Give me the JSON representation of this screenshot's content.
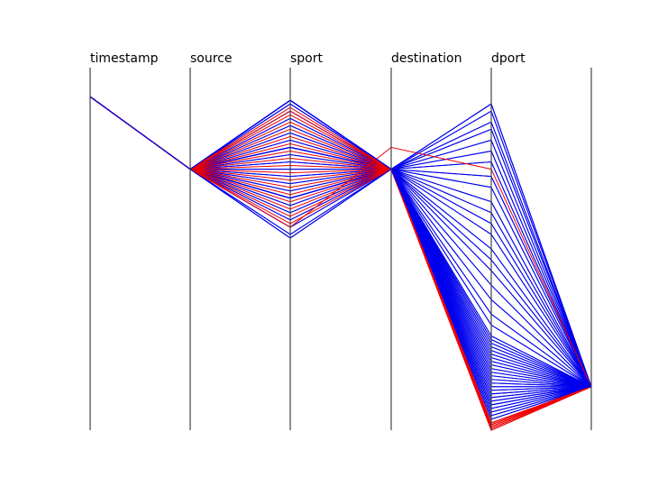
{
  "chart_data": {
    "type": "parallel-coordinates",
    "axes": [
      "timestamp",
      "source",
      "sport",
      "destination",
      "dport",
      ""
    ],
    "value_range": [
      0,
      1
    ],
    "colors": {
      "blue": "#0000ee",
      "red": "#ee0000",
      "axis": "#444444"
    },
    "series": [
      {
        "color": "red",
        "values": [
          0.92,
          0.72,
          0.88,
          0.72,
          0.02,
          0.12
        ]
      },
      {
        "color": "red",
        "values": [
          0.92,
          0.72,
          0.56,
          0.78,
          0.72,
          0.12
        ]
      },
      {
        "color": "blue",
        "values": [
          0.92,
          0.72,
          0.91,
          0.72,
          0.9,
          0.12
        ]
      },
      {
        "color": "blue",
        "values": [
          0.92,
          0.72,
          0.53,
          0.72,
          0.07,
          0.12
        ]
      }
    ],
    "bundles": [
      {
        "color": "blue",
        "timestamp": 0.92,
        "source": 0.72,
        "destination": 0.72,
        "last": 0.12,
        "sport": [
          0.91,
          0.9,
          0.88,
          0.86,
          0.84,
          0.82,
          0.8,
          0.78,
          0.76,
          0.74,
          0.72,
          0.7,
          0.68,
          0.66,
          0.64,
          0.62,
          0.6,
          0.58,
          0.56,
          0.54,
          0.53
        ],
        "dport": [
          0.9,
          0.88,
          0.85,
          0.83,
          0.8,
          0.77,
          0.74,
          0.7,
          0.67,
          0.63,
          0.6,
          0.57,
          0.54,
          0.5,
          0.47,
          0.44,
          0.4,
          0.36,
          0.32,
          0.29,
          0.26,
          0.25,
          0.24,
          0.23,
          0.22,
          0.21,
          0.2,
          0.19,
          0.18,
          0.17,
          0.16,
          0.15,
          0.14,
          0.13,
          0.12,
          0.11,
          0.1,
          0.09,
          0.08,
          0.07,
          0.06,
          0.05,
          0.04,
          0.03
        ]
      },
      {
        "color": "red",
        "timestamp": 0.92,
        "source": 0.72,
        "destination": 0.72,
        "last": 0.12,
        "sport": [
          0.89,
          0.87,
          0.85,
          0.83,
          0.81,
          0.79,
          0.77,
          0.75,
          0.73,
          0.71,
          0.69,
          0.67,
          0.65,
          0.63,
          0.61,
          0.59,
          0.57
        ],
        "dport": [
          0.02,
          0.015,
          0.01,
          0.005,
          0.0
        ]
      }
    ]
  }
}
